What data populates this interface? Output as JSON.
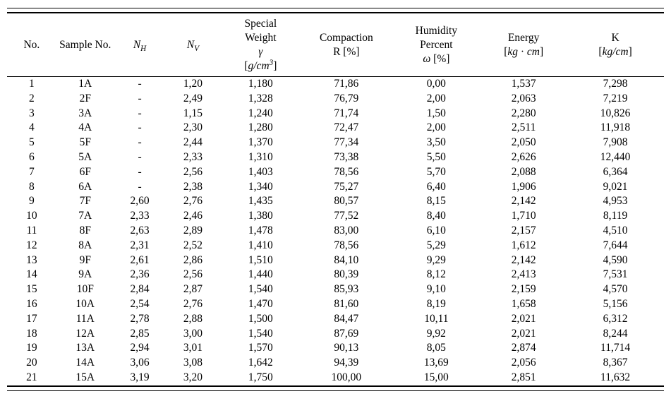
{
  "table": {
    "columns": [
      {
        "id": "no",
        "lines": [
          [
            {
              "text": "No."
            }
          ]
        ]
      },
      {
        "id": "sample-no",
        "lines": [
          [
            {
              "text": "Sample No."
            }
          ]
        ]
      },
      {
        "id": "n-h",
        "lines": [
          [
            {
              "text": "N",
              "italic": true
            },
            {
              "text": "H",
              "italic": true,
              "sub": true
            }
          ]
        ]
      },
      {
        "id": "n-v",
        "lines": [
          [
            {
              "text": "N",
              "italic": true
            },
            {
              "text": "V",
              "italic": true,
              "sub": true
            }
          ]
        ]
      },
      {
        "id": "special-weight",
        "lines": [
          [
            {
              "text": "Special"
            }
          ],
          [
            {
              "text": "Weight"
            }
          ],
          [
            {
              "text": "γ",
              "italic": true
            }
          ],
          [
            {
              "text": "["
            },
            {
              "text": "g/cm",
              "italic": true
            },
            {
              "text": "3",
              "italic": true,
              "sup": true
            },
            {
              "text": "]"
            }
          ]
        ]
      },
      {
        "id": "compaction",
        "lines": [
          [
            {
              "text": "Compaction"
            }
          ],
          [
            {
              "text": "R [%]"
            }
          ]
        ]
      },
      {
        "id": "humidity",
        "lines": [
          [
            {
              "text": "Humidity"
            }
          ],
          [
            {
              "text": "Percent"
            }
          ],
          [
            {
              "text": "ω",
              "italic": true
            },
            {
              "text": " [%]"
            }
          ]
        ]
      },
      {
        "id": "energy",
        "lines": [
          [
            {
              "text": "Energy"
            }
          ],
          [
            {
              "text": "["
            },
            {
              "text": "kg",
              "italic": true
            },
            {
              "text": " · "
            },
            {
              "text": "cm",
              "italic": true
            },
            {
              "text": "]"
            }
          ]
        ]
      },
      {
        "id": "k",
        "lines": [
          [
            {
              "text": "K"
            }
          ],
          [
            {
              "text": "["
            },
            {
              "text": "kg/cm",
              "italic": true
            },
            {
              "text": "]"
            }
          ]
        ]
      }
    ],
    "rows": [
      [
        "1",
        "1A",
        "-",
        "1,20",
        "1,180",
        "71,86",
        "0,00",
        "1,537",
        "7,298"
      ],
      [
        "2",
        "2F",
        "-",
        "2,49",
        "1,328",
        "76,79",
        "2,00",
        "2,063",
        "7,219"
      ],
      [
        "3",
        "3A",
        "-",
        "1,15",
        "1,240",
        "71,74",
        "1,50",
        "2,280",
        "10,826"
      ],
      [
        "4",
        "4A",
        "-",
        "2,30",
        "1,280",
        "72,47",
        "2,00",
        "2,511",
        "11,918"
      ],
      [
        "5",
        "5F",
        "-",
        "2,44",
        "1,370",
        "77,34",
        "3,50",
        "2,050",
        "7,908"
      ],
      [
        "6",
        "5A",
        "-",
        "2,33",
        "1,310",
        "73,38",
        "5,50",
        "2,626",
        "12,440"
      ],
      [
        "7",
        "6F",
        "-",
        "2,56",
        "1,403",
        "78,56",
        "5,70",
        "2,088",
        "6,364"
      ],
      [
        "8",
        "6A",
        "-",
        "2,38",
        "1,340",
        "75,27",
        "6,40",
        "1,906",
        "9,021"
      ],
      [
        "9",
        "7F",
        "2,60",
        "2,76",
        "1,435",
        "80,57",
        "8,15",
        "2,142",
        "4,953"
      ],
      [
        "10",
        "7A",
        "2,33",
        "2,46",
        "1,380",
        "77,52",
        "8,40",
        "1,710",
        "8,119"
      ],
      [
        "11",
        "8F",
        "2,63",
        "2,89",
        "1,478",
        "83,00",
        "6,10",
        "2,157",
        "4,510"
      ],
      [
        "12",
        "8A",
        "2,31",
        "2,52",
        "1,410",
        "78,56",
        "5,29",
        "1,612",
        "7,644"
      ],
      [
        "13",
        "9F",
        "2,61",
        "2,86",
        "1,510",
        "84,10",
        "9,29",
        "2,142",
        "4,590"
      ],
      [
        "14",
        "9A",
        "2,36",
        "2,56",
        "1,440",
        "80,39",
        "8,12",
        "2,413",
        "7,531"
      ],
      [
        "15",
        "10F",
        "2,84",
        "2,87",
        "1,540",
        "85,93",
        "9,10",
        "2,159",
        "4,570"
      ],
      [
        "16",
        "10A",
        "2,54",
        "2,76",
        "1,470",
        "81,60",
        "8,19",
        "1,658",
        "5,156"
      ],
      [
        "17",
        "11A",
        "2,78",
        "2,88",
        "1,500",
        "84,47",
        "10,11",
        "2,021",
        "6,312"
      ],
      [
        "18",
        "12A",
        "2,85",
        "3,00",
        "1,540",
        "87,69",
        "9,92",
        "2,021",
        "8,244"
      ],
      [
        "19",
        "13A",
        "2,94",
        "3,01",
        "1,570",
        "90,13",
        "8,05",
        "2,874",
        "11,714"
      ],
      [
        "20",
        "14A",
        "3,06",
        "3,08",
        "1,642",
        "94,39",
        "13,69",
        "2,056",
        "8,367"
      ],
      [
        "21",
        "15A",
        "3,19",
        "3,20",
        "1,750",
        "100,00",
        "15,00",
        "2,851",
        "11,632"
      ]
    ]
  }
}
